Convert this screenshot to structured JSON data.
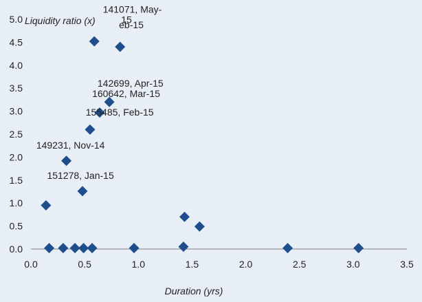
{
  "chart_data": {
    "type": "scatter",
    "title": "",
    "xlabel": "Duration (yrs)",
    "ylabel": "Liquidity ratio (x)",
    "xlim": [
      0,
      3.5
    ],
    "ylim": [
      0,
      5.0
    ],
    "xticks": [
      "0.0",
      "0.5",
      "1.0",
      "1.5",
      "2.0",
      "2.5",
      "3.0",
      "3.5"
    ],
    "yticks": [
      "0.0",
      "0.5",
      "1.0",
      "1.5",
      "2.0",
      "2.5",
      "3.0",
      "3.5",
      "4.0",
      "4.5",
      "5.0"
    ],
    "grid": false,
    "legend": "none",
    "marker": "diamond",
    "color": "#1f4e8c",
    "points": [
      {
        "x": 0.14,
        "y": 0.95
      },
      {
        "x": 0.17,
        "y": 0.02
      },
      {
        "x": 0.3,
        "y": 0.02
      },
      {
        "x": 0.33,
        "y": 1.92
      },
      {
        "x": 0.41,
        "y": 0.02
      },
      {
        "x": 0.48,
        "y": 1.26
      },
      {
        "x": 0.49,
        "y": 0.02
      },
      {
        "x": 0.55,
        "y": 2.6
      },
      {
        "x": 0.57,
        "y": 0.02
      },
      {
        "x": 0.59,
        "y": 4.52
      },
      {
        "x": 0.64,
        "y": 2.97
      },
      {
        "x": 0.73,
        "y": 3.2
      },
      {
        "x": 0.83,
        "y": 4.4
      },
      {
        "x": 0.96,
        "y": 0.02
      },
      {
        "x": 1.42,
        "y": 0.05
      },
      {
        "x": 1.43,
        "y": 0.7
      },
      {
        "x": 1.57,
        "y": 0.49
      },
      {
        "x": 2.39,
        "y": 0.02
      },
      {
        "x": 3.05,
        "y": 0.02
      }
    ],
    "annotations": [
      {
        "text": "141071, May-",
        "x": 0.67,
        "y": 5.22
      },
      {
        "text": "15",
        "x": 0.84,
        "y": 4.99
      },
      {
        "text": "eb-15",
        "x": 0.82,
        "y": 4.88
      },
      {
        "text": "142699, Apr-15",
        "x": 0.62,
        "y": 3.61
      },
      {
        "text": "160642, Mar-15",
        "x": 0.57,
        "y": 3.38
      },
      {
        "text": "155485, Feb-15",
        "x": 0.51,
        "y": 2.98
      },
      {
        "text": "149231, Nov-14",
        "x": 0.05,
        "y": 2.26
      },
      {
        "text": "151278, Jan-15",
        "x": 0.15,
        "y": 1.6
      }
    ]
  }
}
